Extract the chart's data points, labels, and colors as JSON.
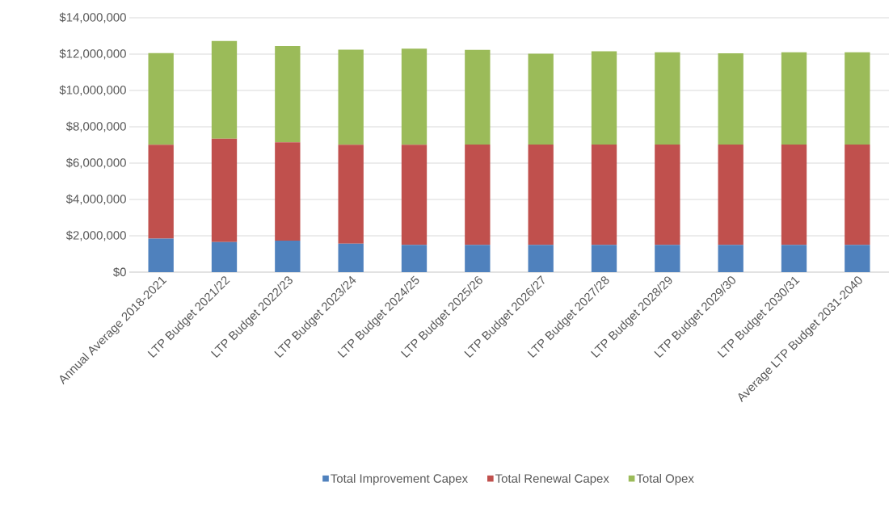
{
  "chart_data": {
    "type": "bar",
    "stacked": true,
    "categories": [
      "Annual Average 2018-2021",
      "LTP Budget 2021/22",
      "LTP Budget 2022/23",
      "LTP Budget 2023/24",
      "LTP Budget 2024/25",
      "LTP Budget 2025/26",
      "LTP Budget 2026/27",
      "LTP Budget 2027/28",
      "LTP Budget 2028/29",
      "LTP Budget 2029/30",
      "LTP Budget 2030/31",
      "Average LTP Budget 2031-2040"
    ],
    "series": [
      {
        "name": "Total Improvement Capex",
        "color": "#4f81bd",
        "values": [
          1840000,
          1660000,
          1730000,
          1570000,
          1500000,
          1500000,
          1500000,
          1500000,
          1500000,
          1500000,
          1500000,
          1500000
        ]
      },
      {
        "name": "Total Renewal Capex",
        "color": "#c0504d",
        "values": [
          5170000,
          5690000,
          5410000,
          5440000,
          5510000,
          5520000,
          5520000,
          5520000,
          5520000,
          5520000,
          5520000,
          5520000
        ]
      },
      {
        "name": "Total Opex",
        "color": "#9bbb59",
        "values": [
          5050000,
          5370000,
          5300000,
          5230000,
          5290000,
          5210000,
          5000000,
          5140000,
          5080000,
          5030000,
          5080000,
          5080000
        ]
      }
    ],
    "ylim": [
      0,
      14000000
    ],
    "yticks": [
      {
        "value": 0,
        "label": "$0"
      },
      {
        "value": 2000000,
        "label": "$2,000,000"
      },
      {
        "value": 4000000,
        "label": "$4,000,000"
      },
      {
        "value": 6000000,
        "label": "$6,000,000"
      },
      {
        "value": 8000000,
        "label": "$8,000,000"
      },
      {
        "value": 10000000,
        "label": "$10,000,000"
      },
      {
        "value": 12000000,
        "label": "$12,000,000"
      },
      {
        "value": 14000000,
        "label": "$14,000,000"
      }
    ],
    "grid": "y",
    "legend": "bottom"
  }
}
